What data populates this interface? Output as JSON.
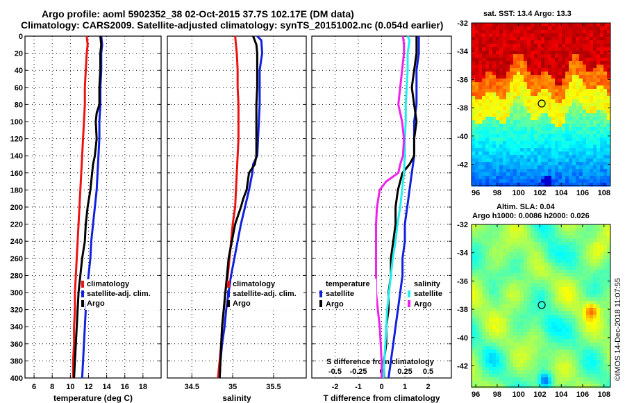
{
  "header": {
    "line1": "Argo profile: aoml 5902352_38 02-Oct-2015 37.7S 102.17E (DM data)",
    "line2": "Climatology: CARS2009. Satellite-adjusted climatology: synTS_20151002.nc (0.054d earlier)"
  },
  "depth_axis": {
    "ticks": [
      0,
      20,
      40,
      60,
      80,
      100,
      120,
      140,
      160,
      180,
      200,
      220,
      240,
      260,
      280,
      300,
      320,
      340,
      360,
      380,
      400
    ]
  },
  "colors": {
    "climatology": "#ee1111",
    "satellite": "#1020dd",
    "argo": "#000000",
    "sal_satellite": "#22eeee",
    "sal_argo": "#ee22ee"
  },
  "chart_data": [
    {
      "type": "line",
      "title": "temperature",
      "xlabel": "temperature (deg C)",
      "xlim": [
        5,
        20
      ],
      "ylim": [
        400,
        0
      ],
      "xticks": [
        6,
        8,
        10,
        12,
        14,
        16,
        18
      ],
      "legend": [
        "climatology",
        "satellite-adj. clim.",
        "Argo"
      ],
      "series": [
        {
          "name": "climatology",
          "color": "#ee1111",
          "points": [
            [
              11.8,
              0
            ],
            [
              11.9,
              10
            ],
            [
              11.8,
              20
            ],
            [
              11.7,
              40
            ],
            [
              11.6,
              60
            ],
            [
              11.6,
              80
            ],
            [
              11.5,
              100
            ],
            [
              11.4,
              120
            ],
            [
              11.3,
              140
            ],
            [
              11.2,
              160
            ],
            [
              11.1,
              180
            ],
            [
              11.0,
              200
            ],
            [
              10.9,
              220
            ],
            [
              10.8,
              240
            ],
            [
              10.7,
              260
            ],
            [
              10.6,
              280
            ],
            [
              10.5,
              300
            ],
            [
              10.5,
              320
            ],
            [
              10.4,
              340
            ],
            [
              10.4,
              360
            ],
            [
              10.3,
              380
            ],
            [
              10.3,
              400
            ]
          ]
        },
        {
          "name": "satellite-adj. clim.",
          "color": "#1020dd",
          "points": [
            [
              13.4,
              0
            ],
            [
              13.5,
              10
            ],
            [
              13.4,
              20
            ],
            [
              13.4,
              40
            ],
            [
              13.3,
              60
            ],
            [
              13.3,
              80
            ],
            [
              13.2,
              100
            ],
            [
              13.2,
              120
            ],
            [
              13.1,
              140
            ],
            [
              13.0,
              160
            ],
            [
              12.9,
              180
            ],
            [
              12.7,
              200
            ],
            [
              12.5,
              220
            ],
            [
              12.3,
              240
            ],
            [
              12.2,
              260
            ],
            [
              12.0,
              280
            ],
            [
              11.8,
              300
            ],
            [
              11.7,
              320
            ],
            [
              11.6,
              340
            ],
            [
              11.5,
              360
            ],
            [
              11.4,
              380
            ],
            [
              11.3,
              400
            ]
          ]
        },
        {
          "name": "Argo",
          "color": "#000000",
          "points": [
            [
              13.3,
              0
            ],
            [
              13.4,
              10
            ],
            [
              13.3,
              20
            ],
            [
              13.3,
              40
            ],
            [
              13.2,
              60
            ],
            [
              13.2,
              80
            ],
            [
              12.9,
              90
            ],
            [
              12.8,
              100
            ],
            [
              12.9,
              120
            ],
            [
              12.7,
              140
            ],
            [
              12.5,
              150
            ],
            [
              12.4,
              160
            ],
            [
              12.2,
              180
            ],
            [
              11.9,
              200
            ],
            [
              11.7,
              220
            ],
            [
              11.6,
              240
            ],
            [
              11.3,
              260
            ],
            [
              11.1,
              280
            ],
            [
              10.9,
              300
            ],
            [
              10.8,
              320
            ],
            [
              10.7,
              340
            ],
            [
              10.6,
              360
            ],
            [
              10.5,
              380
            ],
            [
              10.4,
              400
            ]
          ]
        }
      ]
    },
    {
      "type": "line",
      "title": "salinity",
      "xlabel": "salinity",
      "xlim": [
        34.2,
        35.9
      ],
      "ylim": [
        400,
        0
      ],
      "xticks": [
        34.5,
        35,
        35.5
      ],
      "legend": [
        "climatology",
        "satellite-adj. clim.",
        "Argo"
      ],
      "series": [
        {
          "name": "climatology",
          "color": "#ee1111",
          "points": [
            [
              35.03,
              0
            ],
            [
              35.05,
              20
            ],
            [
              35.06,
              40
            ],
            [
              35.06,
              60
            ],
            [
              35.07,
              80
            ],
            [
              35.07,
              100
            ],
            [
              35.07,
              120
            ],
            [
              35.06,
              140
            ],
            [
              35.05,
              160
            ],
            [
              35.04,
              180
            ],
            [
              35.03,
              200
            ],
            [
              35.0,
              220
            ],
            [
              34.98,
              240
            ],
            [
              34.96,
              260
            ],
            [
              34.94,
              280
            ],
            [
              34.91,
              300
            ],
            [
              34.89,
              320
            ],
            [
              34.87,
              340
            ],
            [
              34.86,
              360
            ],
            [
              34.84,
              380
            ],
            [
              34.82,
              400
            ]
          ]
        },
        {
          "name": "satellite-adj. clim.",
          "color": "#1020dd",
          "points": [
            [
              35.3,
              0
            ],
            [
              35.35,
              5
            ],
            [
              35.36,
              20
            ],
            [
              35.33,
              40
            ],
            [
              35.33,
              60
            ],
            [
              35.33,
              80
            ],
            [
              35.32,
              100
            ],
            [
              35.31,
              120
            ],
            [
              35.3,
              140
            ],
            [
              35.25,
              150
            ],
            [
              35.24,
              160
            ],
            [
              35.2,
              180
            ],
            [
              35.15,
              200
            ],
            [
              35.1,
              220
            ],
            [
              35.06,
              240
            ],
            [
              35.02,
              260
            ],
            [
              34.98,
              280
            ],
            [
              34.95,
              300
            ],
            [
              34.92,
              320
            ],
            [
              34.9,
              340
            ],
            [
              34.87,
              360
            ],
            [
              34.85,
              380
            ],
            [
              34.84,
              400
            ]
          ]
        },
        {
          "name": "Argo",
          "color": "#000000",
          "points": [
            [
              35.25,
              0
            ],
            [
              35.29,
              10
            ],
            [
              35.3,
              20
            ],
            [
              35.3,
              40
            ],
            [
              35.3,
              60
            ],
            [
              35.29,
              80
            ],
            [
              35.29,
              100
            ],
            [
              35.29,
              120
            ],
            [
              35.29,
              140
            ],
            [
              35.27,
              150
            ],
            [
              35.2,
              160
            ],
            [
              35.17,
              180
            ],
            [
              35.13,
              190
            ],
            [
              35.1,
              200
            ],
            [
              35.03,
              220
            ],
            [
              34.99,
              240
            ],
            [
              34.95,
              260
            ],
            [
              34.93,
              280
            ],
            [
              34.91,
              300
            ],
            [
              34.89,
              320
            ],
            [
              34.87,
              340
            ],
            [
              34.86,
              360
            ],
            [
              34.85,
              380
            ],
            [
              34.84,
              400
            ]
          ]
        }
      ]
    },
    {
      "type": "line",
      "title": "difference from climatology",
      "xlabel": "T difference from climatology",
      "xlabel_top": "S difference from climatology",
      "xlim": [
        -3,
        3
      ],
      "ylim": [
        400,
        0
      ],
      "xticks": [
        -2,
        -1,
        0,
        1,
        2
      ],
      "xticks_top": [
        "-0.5",
        "-0.25",
        "0",
        "0.25",
        "0.5"
      ],
      "legend_left": {
        "title": "temperature",
        "items": [
          "satellite",
          "Argo"
        ]
      },
      "legend_right": {
        "title": "salinity",
        "items": [
          "satellite",
          "Argo"
        ]
      },
      "series": [
        {
          "name": "T satellite",
          "color": "#1020dd",
          "points": [
            [
              1.6,
              0
            ],
            [
              1.6,
              10
            ],
            [
              1.6,
              20
            ],
            [
              1.5,
              40
            ],
            [
              1.5,
              60
            ],
            [
              1.5,
              80
            ],
            [
              1.4,
              100
            ],
            [
              1.4,
              120
            ],
            [
              1.4,
              140
            ],
            [
              1.3,
              160
            ],
            [
              1.2,
              180
            ],
            [
              1.1,
              200
            ],
            [
              1.0,
              220
            ],
            [
              1.0,
              240
            ],
            [
              0.9,
              260
            ],
            [
              0.9,
              280
            ],
            [
              0.8,
              300
            ],
            [
              0.7,
              320
            ],
            [
              0.6,
              340
            ],
            [
              0.5,
              360
            ],
            [
              0.4,
              380
            ],
            [
              0.3,
              400
            ]
          ]
        },
        {
          "name": "T Argo",
          "color": "#000000",
          "points": [
            [
              1.5,
              0
            ],
            [
              1.5,
              20
            ],
            [
              1.4,
              40
            ],
            [
              1.3,
              60
            ],
            [
              1.4,
              80
            ],
            [
              1.5,
              100
            ],
            [
              1.4,
              120
            ],
            [
              1.4,
              140
            ],
            [
              1.2,
              150
            ],
            [
              0.9,
              160
            ],
            [
              0.8,
              170
            ],
            [
              0.7,
              180
            ],
            [
              0.6,
              200
            ],
            [
              0.6,
              220
            ],
            [
              0.5,
              240
            ],
            [
              0.4,
              260
            ],
            [
              0.4,
              280
            ],
            [
              0.3,
              300
            ],
            [
              0.3,
              320
            ],
            [
              0.2,
              340
            ],
            [
              0.2,
              360
            ],
            [
              0.1,
              380
            ],
            [
              0.1,
              400
            ]
          ]
        },
        {
          "name": "S satellite",
          "color": "#22eeee",
          "points": [
            [
              0.28,
              0
            ],
            [
              0.3,
              5
            ],
            [
              0.28,
              20
            ],
            [
              0.28,
              40
            ],
            [
              0.27,
              60
            ],
            [
              0.26,
              80
            ],
            [
              0.26,
              100
            ],
            [
              0.25,
              120
            ],
            [
              0.25,
              140
            ],
            [
              0.24,
              160
            ],
            [
              0.22,
              180
            ],
            [
              0.2,
              200
            ],
            [
              0.17,
              220
            ],
            [
              0.15,
              240
            ],
            [
              0.12,
              260
            ],
            [
              0.1,
              280
            ],
            [
              0.08,
              300
            ],
            [
              0.06,
              320
            ],
            [
              0.05,
              340
            ],
            [
              0.04,
              360
            ],
            [
              0.03,
              380
            ],
            [
              0.02,
              400
            ]
          ]
        },
        {
          "name": "S Argo",
          "color": "#ee22ee",
          "points": [
            [
              0.23,
              0
            ],
            [
              0.24,
              10
            ],
            [
              0.24,
              20
            ],
            [
              0.22,
              40
            ],
            [
              0.2,
              60
            ],
            [
              0.18,
              80
            ],
            [
              0.22,
              100
            ],
            [
              0.24,
              120
            ],
            [
              0.23,
              140
            ],
            [
              0.2,
              150
            ],
            [
              0.18,
              160
            ],
            [
              0.05,
              170
            ],
            [
              -0.02,
              180
            ],
            [
              -0.05,
              200
            ],
            [
              -0.06,
              220
            ],
            [
              -0.06,
              240
            ],
            [
              -0.06,
              260
            ],
            [
              -0.06,
              280
            ],
            [
              -0.06,
              300
            ],
            [
              -0.04,
              320
            ],
            [
              -0.02,
              340
            ],
            [
              -0.01,
              360
            ],
            [
              0.0,
              380
            ],
            [
              0.0,
              400
            ]
          ]
        }
      ]
    },
    {
      "type": "heatmap",
      "title": "sat. SST: 13.4 Argo: 13.3",
      "xlim": [
        95.6,
        108.6
      ],
      "ylim": [
        -43.5,
        -32
      ],
      "xticks": [
        96,
        98,
        100,
        102,
        104,
        106,
        108
      ],
      "yticks": [
        -32,
        -34,
        -36,
        -38,
        -40,
        -42
      ],
      "marker": [
        102.17,
        -37.7
      ],
      "colormap": "jet"
    },
    {
      "type": "heatmap",
      "title": "Altim. SLA: 0.04",
      "subtitle": "Argo h1000: 0.0086 h2000: 0.026",
      "xlim": [
        95.6,
        108.6
      ],
      "ylim": [
        -43.5,
        -32
      ],
      "xticks": [
        96,
        98,
        100,
        102,
        104,
        106,
        108
      ],
      "yticks": [
        -32,
        -34,
        -36,
        -38,
        -40,
        -42
      ],
      "marker": [
        102.17,
        -37.7
      ],
      "colormap": "jet"
    }
  ],
  "stamp": "©IMOS 14-Dec-2018 11:07:55"
}
